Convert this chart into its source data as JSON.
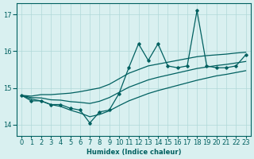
{
  "x": [
    0,
    1,
    2,
    3,
    4,
    5,
    6,
    7,
    8,
    9,
    10,
    11,
    12,
    13,
    14,
    15,
    16,
    17,
    18,
    19,
    20,
    21,
    22,
    23
  ],
  "main_line": [
    14.8,
    14.65,
    14.65,
    14.55,
    14.55,
    14.45,
    14.4,
    14.05,
    14.35,
    14.4,
    14.85,
    15.55,
    16.2,
    15.75,
    16.2,
    15.6,
    15.55,
    15.6,
    17.1,
    15.6,
    15.55,
    15.55,
    15.6,
    15.9
  ],
  "upper_band": [
    14.8,
    14.78,
    14.82,
    14.82,
    14.84,
    14.86,
    14.9,
    14.95,
    15.0,
    15.1,
    15.25,
    15.4,
    15.5,
    15.6,
    15.65,
    15.7,
    15.75,
    15.8,
    15.85,
    15.88,
    15.9,
    15.92,
    15.95,
    15.97
  ],
  "lower_band": [
    14.8,
    14.7,
    14.65,
    14.55,
    14.5,
    14.4,
    14.32,
    14.22,
    14.28,
    14.38,
    14.52,
    14.65,
    14.75,
    14.85,
    14.93,
    15.0,
    15.07,
    15.14,
    15.21,
    15.27,
    15.33,
    15.37,
    15.42,
    15.47
  ],
  "mid_band": [
    14.8,
    14.74,
    14.73,
    14.68,
    14.67,
    14.63,
    14.61,
    14.58,
    14.64,
    14.74,
    14.88,
    15.02,
    15.12,
    15.22,
    15.29,
    15.35,
    15.41,
    15.47,
    15.53,
    15.57,
    15.61,
    15.64,
    15.68,
    15.72
  ],
  "bg_color": "#d9f0f0",
  "line_color": "#006060",
  "grid_color": "#b0d8d8",
  "xlabel": "Humidex (Indice chaleur)",
  "yticks": [
    14,
    15,
    16,
    17
  ],
  "xlim": [
    -0.5,
    23.5
  ],
  "ylim": [
    13.7,
    17.3
  ]
}
